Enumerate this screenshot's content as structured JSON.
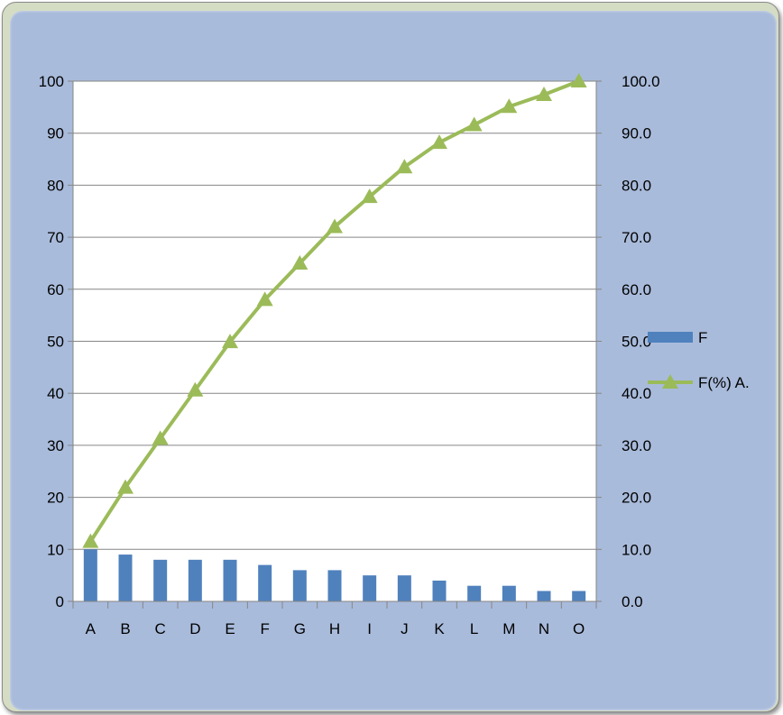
{
  "chart_data": {
    "type": "bar+line",
    "categories": [
      "A",
      "B",
      "C",
      "D",
      "E",
      "F",
      "G",
      "H",
      "I",
      "J",
      "K",
      "L",
      "M",
      "N",
      "O"
    ],
    "series": [
      {
        "name": "F",
        "type": "bar",
        "axis": "left",
        "color": "#4f81bd",
        "values": [
          10,
          9,
          8,
          8,
          8,
          7,
          6,
          6,
          5,
          5,
          4,
          3,
          3,
          2,
          2
        ]
      },
      {
        "name": "F(%) A.",
        "type": "line",
        "axis": "right",
        "color": "#9bbb59",
        "marker": "triangle",
        "values": [
          11.5,
          21.9,
          31.3,
          40.6,
          49.9,
          58.0,
          65.0,
          72.0,
          77.8,
          83.5,
          88.2,
          91.6,
          95.1,
          97.4,
          100.0
        ]
      }
    ],
    "y_left": {
      "ylim": [
        0,
        100
      ],
      "ticks": [
        "0",
        "10",
        "20",
        "30",
        "40",
        "50",
        "60",
        "70",
        "80",
        "90",
        "100"
      ]
    },
    "y_right": {
      "ylim": [
        0,
        100
      ],
      "ticks": [
        "0.0",
        "10.0",
        "20.0",
        "30.0",
        "40.0",
        "50.0",
        "60.0",
        "70.0",
        "80.0",
        "90.0",
        "100.0"
      ]
    },
    "grid": true,
    "legend": "right"
  }
}
